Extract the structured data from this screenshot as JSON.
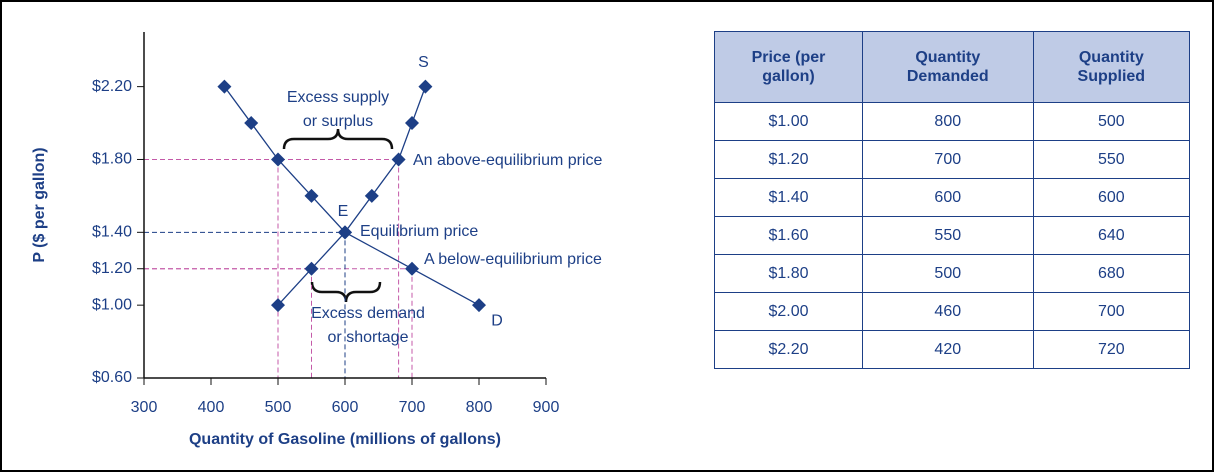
{
  "chart_data": {
    "type": "line",
    "ylabel": "P ($ per gallon)",
    "xlabel": "Quantity of Gasoline (millions of gallons)",
    "series": [
      {
        "name": "D",
        "color": "#1d3f86",
        "x": [
          800,
          700,
          600,
          550,
          500,
          460,
          420
        ],
        "values": [
          1.0,
          1.2,
          1.4,
          1.6,
          1.8,
          2.0,
          2.2
        ]
      },
      {
        "name": "S",
        "color": "#1d3f86",
        "x": [
          500,
          550,
          600,
          640,
          680,
          700,
          720
        ],
        "values": [
          1.0,
          1.2,
          1.4,
          1.6,
          1.8,
          2.0,
          2.2
        ]
      }
    ],
    "xlim": [
      300,
      900
    ],
    "xticks": [
      300,
      400,
      500,
      600,
      700,
      800,
      900
    ],
    "ylim": [
      0.6,
      2.5
    ],
    "yticks": [
      {
        "value": 0.6,
        "label": "$0.60"
      },
      {
        "value": 1.0,
        "label": "$1.00"
      },
      {
        "value": 1.2,
        "label": "$1.20"
      },
      {
        "value": 1.4,
        "label": "$1.40"
      },
      {
        "value": 1.8,
        "label": "$1.80"
      },
      {
        "value": 2.2,
        "label": "$2.20"
      }
    ],
    "annotations": [
      "Excess supply",
      "or surplus",
      "An above-equilibrium price",
      "E",
      "Equilibrium price",
      "A below-equilibrium price",
      "Excess demand",
      "or shortage"
    ]
  },
  "table": {
    "header": [
      "Price (per gallon)",
      "Quantity Demanded",
      "Quantity Supplied"
    ],
    "rows": [
      [
        "$1.00",
        "800",
        "500"
      ],
      [
        "$1.20",
        "700",
        "550"
      ],
      [
        "$1.40",
        "600",
        "600"
      ],
      [
        "$1.60",
        "550",
        "640"
      ],
      [
        "$1.80",
        "500",
        "680"
      ],
      [
        "$2.00",
        "460",
        "700"
      ],
      [
        "$2.20",
        "420",
        "720"
      ]
    ]
  }
}
